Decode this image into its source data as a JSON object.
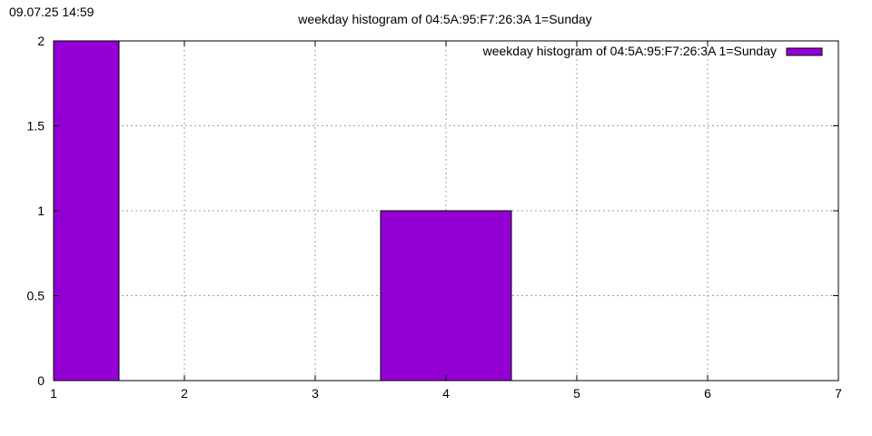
{
  "timestamp": "09.07.25 14:59",
  "chart_data": {
    "type": "bar",
    "title": "weekday histogram of 04:5A:95:F7:26:3A 1=Sunday",
    "xlabel": "",
    "ylabel": "",
    "xlim": [
      1,
      7
    ],
    "ylim": [
      0,
      2
    ],
    "xticks": [
      1,
      2,
      3,
      4,
      5,
      6,
      7
    ],
    "yticks": [
      0,
      0.5,
      1,
      1.5,
      2
    ],
    "ytick_labels": [
      "0",
      "0.5",
      "1",
      "1.5",
      "2"
    ],
    "grid": true,
    "legend_position": "top-right",
    "bar_width": 1,
    "series": [
      {
        "name": "weekday histogram of 04:5A:95:F7:26:3A 1=Sunday",
        "color": "#9400d3",
        "x": [
          1,
          4
        ],
        "values": [
          2,
          1
        ]
      }
    ]
  }
}
